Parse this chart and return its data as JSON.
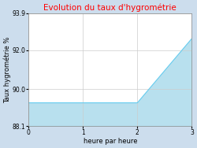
{
  "title": "Evolution du taux d'hygrométrie",
  "title_color": "#ff0000",
  "xlabel": "heure par heure",
  "ylabel": "Taux hygrométrie %",
  "background_color": "#ccdded",
  "plot_bg_color": "#ffffff",
  "x_data": [
    0,
    2.0,
    2.0,
    3.0
  ],
  "y_data": [
    89.3,
    89.3,
    89.3,
    92.6
  ],
  "line_color": "#66ccee",
  "fill_color": "#b8e0ee",
  "ylim": [
    88.1,
    93.9
  ],
  "xlim": [
    0,
    3
  ],
  "yticks": [
    88.1,
    90.0,
    92.0,
    93.9
  ],
  "xticks": [
    0,
    1,
    2,
    3
  ],
  "title_fontsize": 7.5,
  "label_fontsize": 6,
  "tick_fontsize": 5.5
}
